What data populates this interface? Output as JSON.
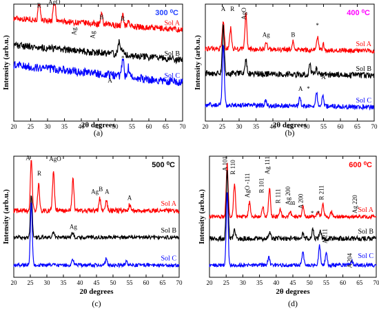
{
  "chart_data": [
    {
      "type": "line",
      "panel": "(a)",
      "title": "300 ⁰C",
      "title_color": "#1f3fff",
      "xlabel": "2θ degrees",
      "ylabel": "Intensity (arb.u.)",
      "xlim": [
        20,
        70
      ],
      "x_ticks": [
        20,
        25,
        30,
        35,
        40,
        45,
        50,
        55,
        60,
        65,
        70
      ],
      "series": [
        {
          "name": "Sol A",
          "color": "#ff0000",
          "base": 0.78,
          "slope": 0.1,
          "noise": 0.025,
          "peaks": [
            [
              27.5,
              0.16
            ],
            [
              32.0,
              0.25
            ],
            [
              46.0,
              0.08
            ],
            [
              52.3,
              0.09
            ],
            [
              54.0,
              0.05
            ]
          ]
        },
        {
          "name": "Sol B",
          "color": "#000000",
          "base": 0.52,
          "slope": 0.13,
          "noise": 0.03,
          "peaks": [
            [
              51.2,
              0.11
            ],
            [
              52.0,
              0.06
            ]
          ]
        },
        {
          "name": "Sol C",
          "color": "#0000ff",
          "base": 0.33,
          "slope": 0.15,
          "noise": 0.035,
          "peaks": [
            [
              52.3,
              0.16
            ],
            [
              53.9,
              0.08
            ]
          ]
        }
      ],
      "annotations": [
        {
          "text": "R",
          "x": 27.5,
          "y": 0.97
        },
        {
          "text": "AgO",
          "x": 32.0,
          "y": 1.0
        },
        {
          "text": "Ag",
          "x": 38.5,
          "y": 0.8,
          "rotate": true
        },
        {
          "text": "Ag",
          "x": 44.0,
          "y": 0.77,
          "rotate": true
        },
        {
          "text": "B",
          "x": 46.0,
          "y": 0.87
        },
        {
          "text": "R",
          "x": 52.3,
          "y": 0.86
        },
        {
          "text": "A",
          "x": 48.5,
          "y": 0.33
        },
        {
          "text": "*",
          "x": 52.3,
          "y": 0.52
        }
      ]
    },
    {
      "type": "line",
      "panel": "(b)",
      "title": "400 ⁰C",
      "title_color": "#ff00ff",
      "xlabel": "2θ degrees",
      "ylabel": "Intensity (arb.u.)",
      "xlim": [
        20,
        70
      ],
      "x_ticks": [
        20,
        25,
        30,
        35,
        40,
        45,
        50,
        55,
        60,
        65,
        70
      ],
      "series": [
        {
          "name": "Sol A",
          "color": "#ff0000",
          "base": 0.6,
          "slope": 0.02,
          "noise": 0.02,
          "peaks": [
            [
              25.3,
              0.24
            ],
            [
              27.5,
              0.18
            ],
            [
              32.0,
              0.3
            ],
            [
              38.0,
              0.07
            ],
            [
              46.0,
              0.07
            ],
            [
              53.2,
              0.12
            ],
            [
              55.0,
              0.05
            ]
          ]
        },
        {
          "name": "Sol B",
          "color": "#000000",
          "base": 0.39,
          "slope": 0.02,
          "noise": 0.025,
          "peaks": [
            [
              25.3,
              0.4
            ],
            [
              32.0,
              0.13
            ],
            [
              51.0,
              0.08
            ],
            [
              52.9,
              0.05
            ]
          ]
        },
        {
          "name": "Sol C",
          "color": "#0000ff",
          "base": 0.12,
          "slope": 0.02,
          "noise": 0.02,
          "peaks": [
            [
              25.3,
              0.52
            ],
            [
              37.8,
              0.04
            ],
            [
              48.0,
              0.07
            ],
            [
              52.9,
              0.12
            ],
            [
              54.8,
              0.1
            ]
          ]
        }
      ],
      "annotations": [
        {
          "text": "A",
          "x": 25.3,
          "y": 0.94
        },
        {
          "text": "R",
          "x": 28.0,
          "y": 0.94
        },
        {
          "text": "AgO",
          "x": 32.0,
          "y": 0.97,
          "rotate": true
        },
        {
          "text": "Ag",
          "x": 38.0,
          "y": 0.72
        },
        {
          "text": "B",
          "x": 46.0,
          "y": 0.72
        },
        {
          "text": "*",
          "x": 53.2,
          "y": 0.8
        },
        {
          "text": "A",
          "x": 48.2,
          "y": 0.26
        },
        {
          "text": "*",
          "x": 50.5,
          "y": 0.26
        },
        {
          "text": "*",
          "x": 52.9,
          "y": 0.42
        },
        {
          "text": "A",
          "x": 55.0,
          "y": 0.36
        }
      ]
    },
    {
      "type": "line",
      "panel": "(c)",
      "title": "500 ⁰C",
      "title_color": "#000000",
      "xlabel": "20 degrees",
      "ylabel": "Intensity (arb.u.)",
      "xlim": [
        20,
        70
      ],
      "x_ticks": [
        20,
        25,
        30,
        35,
        40,
        45,
        50,
        55,
        60,
        65,
        70
      ],
      "series": [
        {
          "name": "Sol A",
          "color": "#ff0000",
          "base": 0.55,
          "slope": 0.0,
          "noise": 0.02,
          "peaks": [
            [
              25.3,
              0.42
            ],
            [
              27.5,
              0.22
            ],
            [
              32.0,
              0.33
            ],
            [
              37.9,
              0.26
            ],
            [
              46.0,
              0.1
            ],
            [
              48.0,
              0.09
            ],
            [
              55.0,
              0.05
            ]
          ]
        },
        {
          "name": "Sol B",
          "color": "#000000",
          "base": 0.33,
          "slope": 0.0,
          "noise": 0.015,
          "peaks": [
            [
              25.3,
              0.36
            ],
            [
              32.0,
              0.04
            ],
            [
              37.8,
              0.04
            ]
          ]
        },
        {
          "name": "Sol C",
          "color": "#0000ff",
          "base": 0.1,
          "slope": 0.0,
          "noise": 0.015,
          "peaks": [
            [
              25.3,
              0.52
            ],
            [
              37.8,
              0.05
            ],
            [
              48.0,
              0.06
            ],
            [
              54.0,
              0.03
            ]
          ]
        }
      ],
      "annotations": [
        {
          "text": "A",
          "x": 24.3,
          "y": 0.97
        },
        {
          "text": "R",
          "x": 27.7,
          "y": 0.84
        },
        {
          "text": "AgO",
          "x": 32.5,
          "y": 0.96
        },
        {
          "text": "Ag",
          "x": 44.5,
          "y": 0.69
        },
        {
          "text": "B",
          "x": 46.3,
          "y": 0.71
        },
        {
          "text": "A",
          "x": 48.2,
          "y": 0.69
        },
        {
          "text": "A",
          "x": 55.0,
          "y": 0.64
        },
        {
          "text": "Ag",
          "x": 38.0,
          "y": 0.4
        }
      ]
    },
    {
      "type": "line",
      "panel": "(d)",
      "title": "600 ⁰C",
      "title_color": "#ff0000",
      "xlabel": "2θ degrees",
      "ylabel": "Intensity (arb.u.)",
      "xlim": [
        20,
        70
      ],
      "x_ticks": [
        20,
        25,
        30,
        35,
        40,
        45,
        50,
        55,
        60,
        65,
        70
      ],
      "series": [
        {
          "name": "Sol A",
          "color": "#ff0000",
          "base": 0.5,
          "slope": 0.0,
          "noise": 0.015,
          "peaks": [
            [
              25.3,
              0.44
            ],
            [
              27.5,
              0.27
            ],
            [
              32.0,
              0.12
            ],
            [
              36.0,
              0.08
            ],
            [
              38.0,
              0.23
            ],
            [
              41.2,
              0.06
            ],
            [
              44.2,
              0.04
            ],
            [
              48.0,
              0.08
            ],
            [
              52.5,
              0.04
            ],
            [
              54.0,
              0.1
            ],
            [
              56.5,
              0.04
            ]
          ]
        },
        {
          "name": "Sol B",
          "color": "#000000",
          "base": 0.32,
          "slope": 0.0,
          "noise": 0.02,
          "peaks": [
            [
              25.3,
              0.58
            ],
            [
              27.5,
              0.07
            ],
            [
              38.0,
              0.05
            ],
            [
              48.0,
              0.04
            ],
            [
              51.0,
              0.08
            ],
            [
              53.2,
              0.07
            ]
          ]
        },
        {
          "name": "Sol C",
          "color": "#0000ff",
          "base": 0.1,
          "slope": 0.0,
          "noise": 0.015,
          "peaks": [
            [
              25.3,
              0.6
            ],
            [
              37.8,
              0.07
            ],
            [
              48.0,
              0.1
            ],
            [
              53.0,
              0.16
            ],
            [
              55.0,
              0.1
            ],
            [
              62.7,
              0.04
            ]
          ]
        }
      ],
      "annotations": [
        {
          "text": "A 101",
          "x": 25.3,
          "y": 1.0,
          "rotate": true
        },
        {
          "text": "R 110",
          "x": 27.6,
          "y": 0.97,
          "rotate": true
        },
        {
          "text": "AgO -111",
          "x": 32.0,
          "y": 0.86,
          "rotate": true
        },
        {
          "text": "Ag 111",
          "x": 38.0,
          "y": 1.0,
          "rotate": true
        },
        {
          "text": "R 101",
          "x": 36.2,
          "y": 0.82,
          "rotate": true
        },
        {
          "text": "R 111",
          "x": 41.2,
          "y": 0.73,
          "rotate": true
        },
        {
          "text": "Ag 200",
          "x": 44.2,
          "y": 0.75,
          "rotate": true
        },
        {
          "text": "B",
          "x": 45.6,
          "y": 0.63,
          "rotate": true
        },
        {
          "text": "A 200",
          "x": 48.0,
          "y": 0.69,
          "rotate": true
        },
        {
          "text": "R 211",
          "x": 54.2,
          "y": 0.76,
          "rotate": true
        },
        {
          "text": "Ag 220",
          "x": 64.2,
          "y": 0.68,
          "rotate": true
        },
        {
          "text": "A 211",
          "x": 55.2,
          "y": 0.4,
          "rotate": true
        },
        {
          "text": "A 204",
          "x": 62.7,
          "y": 0.2,
          "rotate": true
        },
        {
          "text": "*",
          "x": 50.8,
          "y": 0.51
        },
        {
          "text": "*",
          "x": 52.6,
          "y": 0.51
        }
      ]
    }
  ]
}
